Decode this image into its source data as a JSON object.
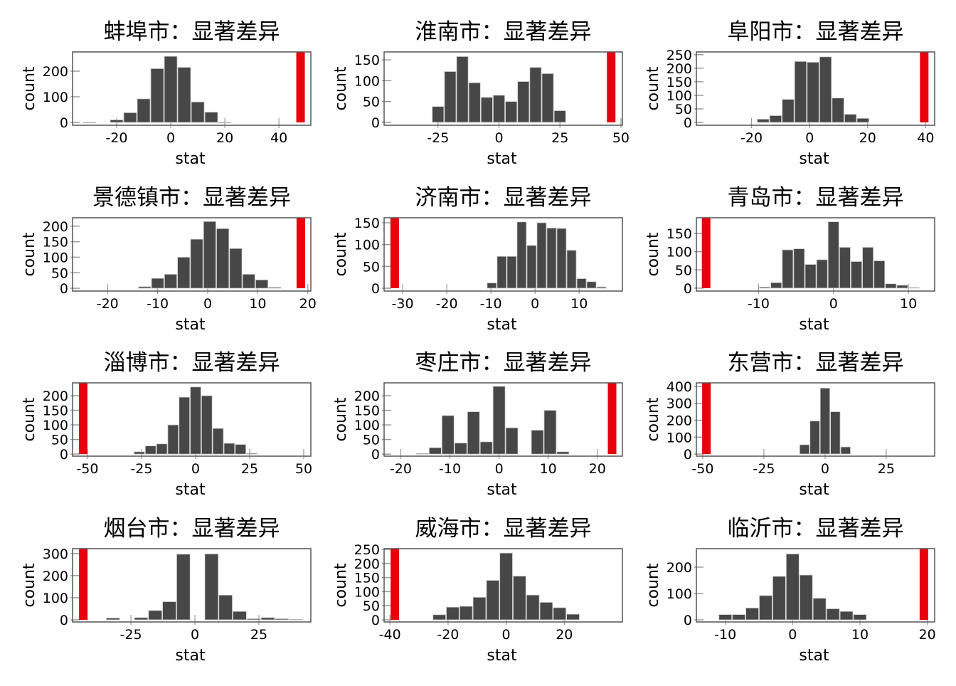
{
  "colors": {
    "bar": "#474747",
    "observed": "#e8000b",
    "frame": "#555555"
  },
  "chart_data": [
    {
      "type": "bar",
      "title": "蚌埠市：显著差异",
      "xlabel": "stat",
      "ylabel": "count",
      "xlim": [
        -36.3,
        51.8
      ],
      "ylim": [
        -11,
        275
      ],
      "xticks": [
        -20,
        0,
        20,
        40
      ],
      "yticks": [
        0,
        100,
        200
      ],
      "binwidth": 5,
      "bins": [
        -30,
        -20,
        -15,
        -10,
        -5,
        0,
        5,
        10,
        15,
        20
      ],
      "counts": [
        1,
        10,
        38,
        92,
        210,
        258,
        215,
        80,
        40,
        1
      ],
      "observed_stat": 48
    },
    {
      "type": "bar",
      "title": "淮南市：显著差异",
      "xlabel": "stat",
      "ylabel": "count",
      "xlim": [
        -47.1,
        50.6
      ],
      "ylim": [
        -7,
        169
      ],
      "xticks": [
        -25,
        0,
        25,
        50
      ],
      "yticks": [
        0,
        50,
        100,
        150
      ],
      "binwidth": 5,
      "bins": [
        -25,
        -20,
        -15,
        -10,
        -5,
        0,
        5,
        10,
        15,
        20,
        25
      ],
      "counts": [
        38,
        122,
        158,
        95,
        60,
        65,
        50,
        98,
        132,
        117,
        28
      ],
      "observed_stat": 46
    },
    {
      "type": "bar",
      "title": "阜阳市：显著差异",
      "xlabel": "stat",
      "ylabel": "count",
      "xlim": [
        -39,
        43.1
      ],
      "ylim": [
        -10.5,
        260
      ],
      "xticks": [
        -20,
        0,
        20,
        40
      ],
      "yticks": [
        0,
        50,
        100,
        150,
        200,
        250
      ],
      "binwidth": 4.3,
      "bins": [
        -16,
        -11.7,
        -7.4,
        -3.1,
        1.2,
        5.5,
        9.8,
        14.1,
        18.4
      ],
      "counts": [
        12,
        25,
        85,
        225,
        222,
        242,
        90,
        30,
        15
      ],
      "observed_stat": 39.5
    },
    {
      "type": "bar",
      "title": "景德镇市：显著差异",
      "xlabel": "stat",
      "ylabel": "count",
      "xlim": [
        -27,
        20.6
      ],
      "ylim": [
        -9,
        227
      ],
      "xticks": [
        -20,
        -10,
        0,
        10,
        20
      ],
      "yticks": [
        0,
        50,
        100,
        150,
        200
      ],
      "binwidth": 2.6,
      "bins": [
        -12.6,
        -10,
        -7.4,
        -4.8,
        -2.2,
        0.4,
        3,
        5.6,
        8.2,
        10.8,
        13.4
      ],
      "counts": [
        5,
        32,
        45,
        100,
        158,
        215,
        192,
        128,
        45,
        27,
        3
      ],
      "observed_stat": 18.6
    },
    {
      "type": "bar",
      "title": "济南市：显著差异",
      "xlabel": "stat",
      "ylabel": "count",
      "xlim": [
        -34.2,
        19.8
      ],
      "ylim": [
        -6.5,
        161.5
      ],
      "xticks": [
        -30,
        -20,
        -10,
        0,
        10
      ],
      "yticks": [
        0,
        50,
        100,
        150
      ],
      "binwidth": 2.26,
      "bins": [
        -9.8,
        -7.54,
        -5.28,
        -3.02,
        -0.76,
        1.5,
        3.76,
        6.02,
        8.28,
        10.54,
        12.8,
        15.06
      ],
      "counts": [
        12,
        73,
        73,
        152,
        98,
        150,
        138,
        137,
        87,
        22,
        15,
        3
      ],
      "observed_stat": -31.8
    },
    {
      "type": "bar",
      "title": "青岛市：显著差异",
      "xlabel": "stat",
      "ylabel": "count",
      "xlim": [
        -18.3,
        13.5
      ],
      "ylim": [
        -8,
        193
      ],
      "xticks": [
        -10,
        0,
        10
      ],
      "yticks": [
        0,
        50,
        100,
        150
      ],
      "binwidth": 1.53,
      "bins": [
        -9.18,
        -7.65,
        -6.12,
        -4.59,
        -3.06,
        -1.53,
        0,
        1.53,
        3.06,
        4.59,
        6.12,
        7.65,
        9.18,
        10.71
      ],
      "counts": [
        3,
        15,
        105,
        108,
        65,
        78,
        182,
        112,
        73,
        112,
        75,
        12,
        8,
        2
      ],
      "observed_stat": -17
    },
    {
      "type": "bar",
      "title": "淄博市：显著差异",
      "xlabel": "stat",
      "ylabel": "count",
      "xlim": [
        -56.9,
        53.3
      ],
      "ylim": [
        -7,
        244
      ],
      "xticks": [
        -50,
        -25,
        0,
        25,
        50
      ],
      "yticks": [
        0,
        50,
        100,
        150,
        200
      ],
      "binwidth": 5.2,
      "bins": [
        -26,
        -20.8,
        -15.6,
        -10.4,
        -5.2,
        0,
        5.2,
        10.4,
        15.6,
        20.8,
        26
      ],
      "counts": [
        8,
        28,
        35,
        100,
        195,
        230,
        200,
        88,
        37,
        33,
        3
      ],
      "observed_stat": -52
    },
    {
      "type": "bar",
      "title": "枣庄市：显著差异",
      "xlabel": "stat",
      "ylabel": "count",
      "xlim": [
        -23.4,
        25.1
      ],
      "ylim": [
        -7,
        244
      ],
      "xticks": [
        -20,
        -10,
        0,
        10,
        20
      ],
      "yticks": [
        0,
        50,
        100,
        150,
        200
      ],
      "binwidth": 2.6,
      "bins": [
        -15.6,
        -13,
        -10.4,
        -7.8,
        -5.2,
        -2.6,
        0,
        2.6,
        5.2,
        7.8,
        10.4,
        13
      ],
      "counts": [
        2,
        22,
        132,
        38,
        145,
        42,
        232,
        90,
        0,
        82,
        150,
        8
      ],
      "observed_stat": 23
    },
    {
      "type": "bar",
      "title": "东营市：显著差异",
      "xlabel": "stat",
      "ylabel": "count",
      "xlim": [
        -52.6,
        44.8
      ],
      "ylim": [
        -12.6,
        421
      ],
      "xticks": [
        -50,
        -25,
        0,
        25
      ],
      "yticks": [
        0,
        100,
        200,
        300,
        400
      ],
      "binwidth": 4.2,
      "bins": [
        -8.4,
        -4.2,
        0,
        4.2,
        8.4
      ],
      "counts": [
        55,
        195,
        390,
        250,
        42
      ],
      "observed_stat": -48.5
    },
    {
      "type": "bar",
      "title": "烟台市：显著差异",
      "xlabel": "stat",
      "ylabel": "count",
      "xlim": [
        -47.8,
        45.3
      ],
      "ylim": [
        -9.7,
        322
      ],
      "xticks": [
        -25,
        0,
        25
      ],
      "yticks": [
        0,
        100,
        200,
        300
      ],
      "binwidth": 5.5,
      "bins": [
        -32,
        -26.5,
        -21,
        -15.5,
        -10,
        -4.5,
        1,
        6.5,
        12,
        17.5,
        23,
        28.5,
        34,
        39.5
      ],
      "counts": [
        8,
        0,
        10,
        42,
        82,
        297,
        0,
        298,
        112,
        38,
        5,
        10,
        5,
        2
      ],
      "observed_stat": -43.6
    },
    {
      "type": "bar",
      "title": "威海市：显著差异",
      "xlabel": "stat",
      "ylabel": "count",
      "xlim": [
        -42,
        40
      ],
      "ylim": [
        -7.6,
        252.5
      ],
      "xticks": [
        -40,
        -20,
        0,
        20
      ],
      "yticks": [
        0,
        50,
        100,
        150,
        200,
        250
      ],
      "binwidth": 4.6,
      "bins": [
        -23,
        -18.4,
        -13.8,
        -9.2,
        -4.6,
        0,
        4.6,
        9.2,
        13.8,
        18.4,
        23
      ],
      "counts": [
        18,
        45,
        48,
        80,
        140,
        237,
        155,
        88,
        62,
        43,
        20
      ],
      "observed_stat": -38.3
    },
    {
      "type": "bar",
      "title": "临沂市：显著差异",
      "xlabel": "stat",
      "ylabel": "count",
      "xlim": [
        -14.3,
        21.1
      ],
      "ylim": [
        -8,
        270
      ],
      "xticks": [
        -10,
        0,
        10,
        20
      ],
      "yticks": [
        0,
        100,
        200
      ],
      "binwidth": 2,
      "bins": [
        -10,
        -8,
        -6,
        -4,
        -2,
        0,
        2,
        4,
        6,
        8,
        10
      ],
      "counts": [
        20,
        20,
        45,
        92,
        165,
        250,
        170,
        82,
        42,
        32,
        20
      ],
      "observed_stat": 19.5
    }
  ]
}
